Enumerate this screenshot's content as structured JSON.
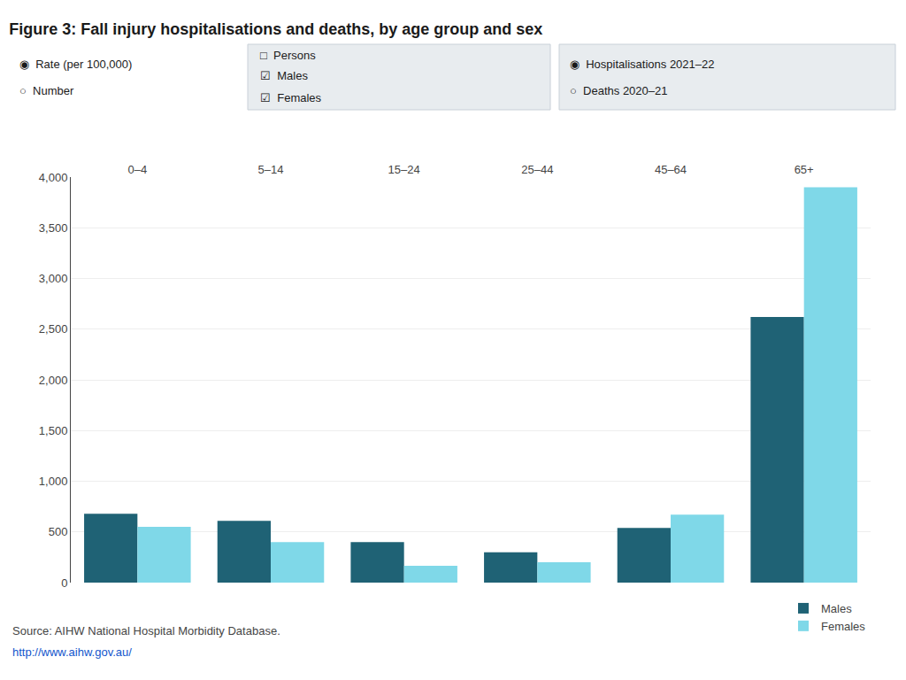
{
  "chart_data": {
    "type": "bar",
    "title": "Figure 3: Fall injury hospitalisations and deaths, by age group and sex",
    "categories": [
      "0–4",
      "5–14",
      "15–24",
      "25–44",
      "45–64",
      "65+"
    ],
    "series": [
      {
        "name": "Males",
        "color": "#1f6275",
        "values": [
          680,
          610,
          400,
          300,
          540,
          2620
        ]
      },
      {
        "name": "Females",
        "color": "#7fd8e8",
        "values": [
          550,
          400,
          165,
          200,
          670,
          3900
        ]
      }
    ],
    "ylim": [
      0,
      4000
    ],
    "yticks": [
      0,
      500,
      {
        "value": 1000,
        "label": "1,000"
      },
      {
        "value": 1500,
        "label": "1,500"
      },
      {
        "value": 2000,
        "label": "2,000"
      },
      {
        "value": 2500,
        "label": "2,500"
      },
      {
        "value": 3000,
        "label": "3,000"
      },
      {
        "value": 3500,
        "label": "3,500"
      },
      {
        "value": 4000,
        "label": "4,000"
      }
    ],
    "grid": true,
    "legend": "lower right",
    "annotations": [
      "◉  Rate (per 100,000)",
      "○  Number",
      "□  Persons",
      "☑  Males",
      "☑  Females",
      "◉  Hospitalisations 2021–22",
      "○  Deaths 2020–21",
      "Source: AIHW National Hospital Morbidity Database.",
      "http://www.aihw.gov.au/"
    ]
  }
}
